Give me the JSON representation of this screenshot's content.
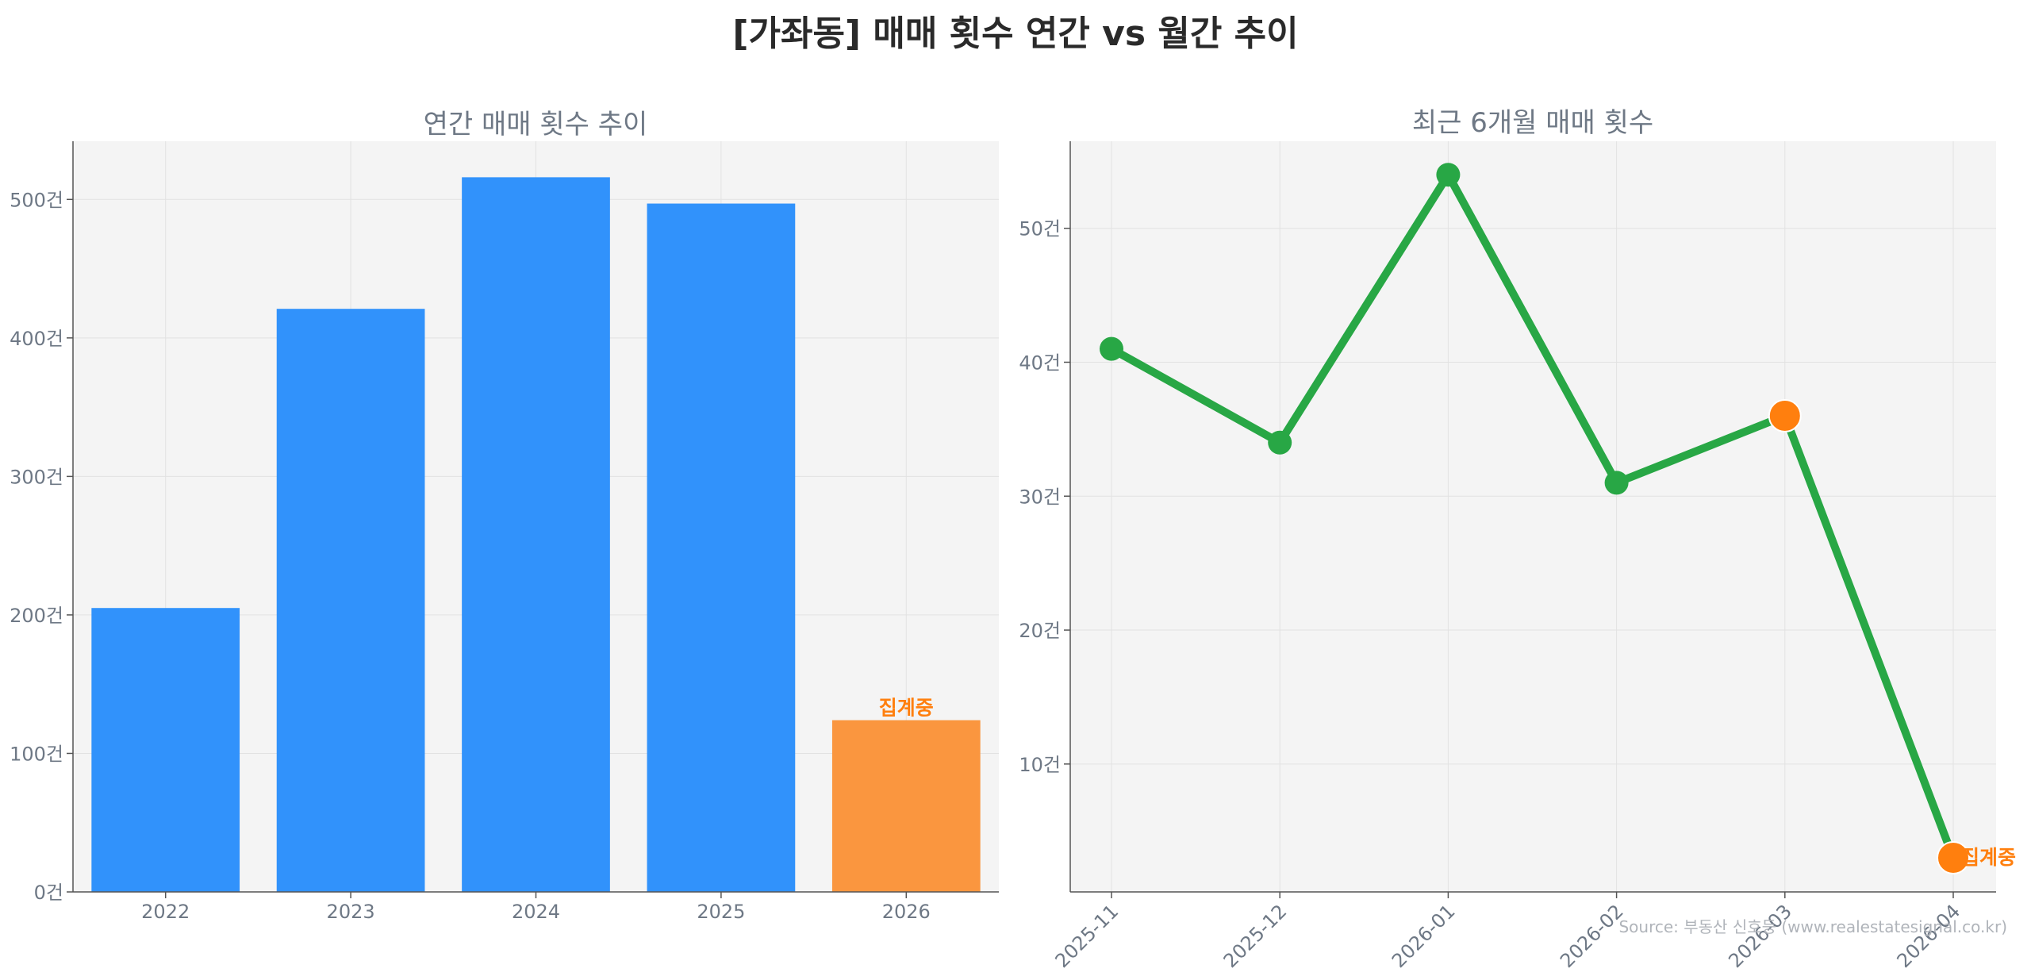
{
  "title": "[가좌동] 매매 횟수 연간 vs 월간 추이",
  "source": "Source: 부동산 신호등 (www.realestatesignal.co.kr)",
  "colors": {
    "bar": "#3192fb",
    "bar_pending": "#fa963f",
    "line": "#28a745",
    "marker_pending": "#ff7f0e",
    "highlight_text": "#ff7f0e",
    "plot_bg": "#f4f4f4",
    "grid": "#e2e2e2"
  },
  "chart_data": [
    {
      "type": "bar",
      "title": "연간 매매 횟수 추이",
      "categories": [
        "2022",
        "2023",
        "2024",
        "2025",
        "2026"
      ],
      "values": [
        205,
        421,
        516,
        497,
        124
      ],
      "pending_index": 4,
      "pending_label": "집계중",
      "ylim": [
        0,
        542
      ],
      "yticks": [
        0,
        100,
        200,
        300,
        400,
        500
      ],
      "ytick_labels": [
        "0건",
        "100건",
        "200건",
        "300건",
        "400건",
        "500건"
      ],
      "grid": true
    },
    {
      "type": "line",
      "title": "최근 6개월 매매 횟수",
      "x": [
        "2025-11",
        "2025-12",
        "2026-01",
        "2026-02",
        "2026-03",
        "2026-04"
      ],
      "values": [
        41,
        34,
        54,
        31,
        36,
        3
      ],
      "pending_indices": [
        4,
        5
      ],
      "pending_label": "집계중",
      "ylim": [
        0.45,
        56.5
      ],
      "yticks": [
        10,
        20,
        30,
        40,
        50
      ],
      "ytick_labels": [
        "10건",
        "20건",
        "30건",
        "40건",
        "50건"
      ],
      "grid": true
    }
  ]
}
